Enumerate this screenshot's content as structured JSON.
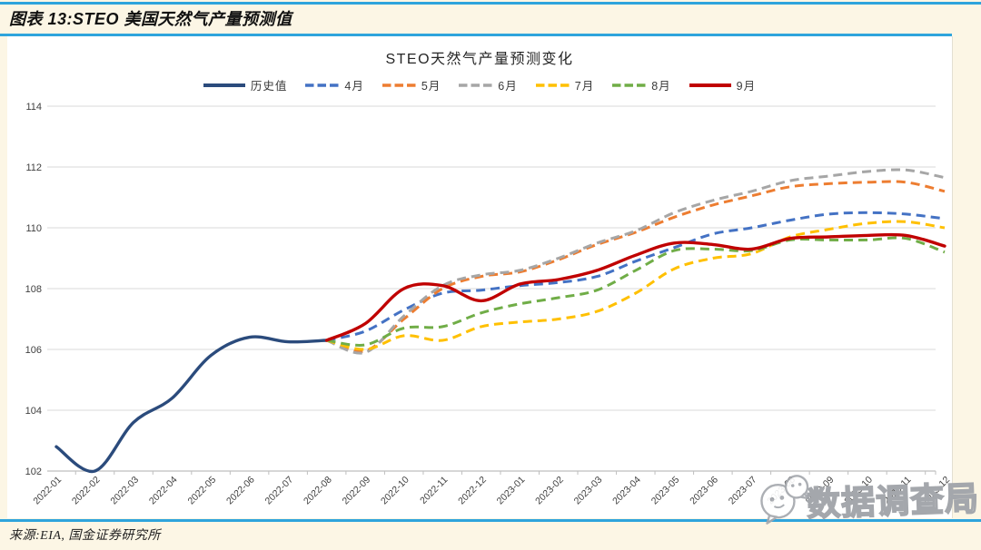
{
  "page": {
    "background": "#FCF6E5",
    "rule_color": "#2EA4DC"
  },
  "header": {
    "title": "图表 13:STEO 美国天然气产量预测值"
  },
  "footer": {
    "source": "来源:EIA, 国金证券研究所"
  },
  "watermark": {
    "text": "数据调查局",
    "logo": "wechat-chat-bubbles"
  },
  "chart_data": {
    "type": "line",
    "title": "STEO天然气产量预测变化",
    "x": [
      "2022-01",
      "2022-02",
      "2022-03",
      "2022-04",
      "2022-05",
      "2022-06",
      "2022-07",
      "2022-08",
      "2022-09",
      "2022-10",
      "2022-11",
      "2022-12",
      "2023-01",
      "2023-02",
      "2023-03",
      "2023-04",
      "2023-05",
      "2023-06",
      "2023-07",
      "2023-08",
      "2023-09",
      "2023-10",
      "2023-11",
      "2023-12"
    ],
    "ylim": [
      102,
      114
    ],
    "ytick_step": 2,
    "grid": "horizontal",
    "legend_position": "top",
    "axis_color": "#BFBFBF",
    "gridline_color": "#D9D9D9",
    "tick_label_color": "#404040",
    "series": [
      {
        "name": "历史值",
        "color": "#2B4B7C",
        "style": "solid",
        "values": [
          102.8,
          102.0,
          103.6,
          104.4,
          105.8,
          106.4,
          106.25,
          106.3,
          null,
          null,
          null,
          null,
          null,
          null,
          null,
          null,
          null,
          null,
          null,
          null,
          null,
          null,
          null,
          null
        ]
      },
      {
        "name": "4月",
        "color": "#4472C4",
        "style": "dashed",
        "values": [
          null,
          null,
          null,
          null,
          null,
          null,
          null,
          106.3,
          106.6,
          107.3,
          107.85,
          107.95,
          108.1,
          108.2,
          108.4,
          108.9,
          109.35,
          109.8,
          110.0,
          110.25,
          110.45,
          110.5,
          110.45,
          110.3
        ]
      },
      {
        "name": "5月",
        "color": "#ED7D31",
        "style": "dashed",
        "values": [
          null,
          null,
          null,
          null,
          null,
          null,
          null,
          106.3,
          105.95,
          107.0,
          108.0,
          108.4,
          108.55,
          108.95,
          109.45,
          109.85,
          110.35,
          110.75,
          111.05,
          111.35,
          111.45,
          111.5,
          111.5,
          111.2
        ]
      },
      {
        "name": "6月",
        "color": "#A6A6A6",
        "style": "dashed",
        "values": [
          null,
          null,
          null,
          null,
          null,
          null,
          null,
          106.3,
          105.9,
          107.1,
          108.1,
          108.45,
          108.6,
          109.0,
          109.5,
          109.9,
          110.5,
          110.9,
          111.2,
          111.55,
          111.7,
          111.85,
          111.9,
          111.65
        ]
      },
      {
        "name": "7月",
        "color": "#FFC000",
        "style": "dashed",
        "values": [
          null,
          null,
          null,
          null,
          null,
          null,
          null,
          106.3,
          106.0,
          106.45,
          106.3,
          106.75,
          106.9,
          107.0,
          107.25,
          107.85,
          108.65,
          109.0,
          109.15,
          109.7,
          109.95,
          110.15,
          110.2,
          110.0
        ]
      },
      {
        "name": "8月",
        "color": "#70AD47",
        "style": "dashed",
        "values": [
          null,
          null,
          null,
          null,
          null,
          null,
          null,
          106.3,
          106.15,
          106.7,
          106.75,
          107.2,
          107.5,
          107.7,
          107.95,
          108.6,
          109.25,
          109.3,
          109.25,
          109.6,
          109.6,
          109.6,
          109.65,
          109.2
        ]
      },
      {
        "name": "9月",
        "color": "#C00000",
        "style": "solid",
        "values": [
          null,
          null,
          null,
          null,
          null,
          null,
          null,
          106.3,
          106.85,
          108.0,
          108.1,
          107.6,
          108.15,
          108.3,
          108.6,
          109.1,
          109.5,
          109.45,
          109.3,
          109.65,
          109.7,
          109.75,
          109.75,
          109.4
        ]
      }
    ]
  }
}
